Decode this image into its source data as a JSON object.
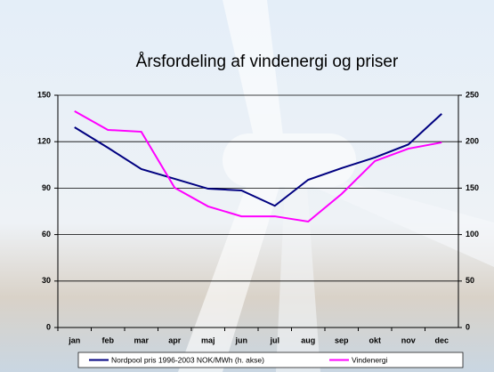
{
  "chart_data": {
    "type": "line",
    "title": "Årsfordeling af vindenergi og priser",
    "categories": [
      "jan",
      "feb",
      "mar",
      "apr",
      "maj",
      "jun",
      "jul",
      "aug",
      "sep",
      "okt",
      "nov",
      "dec"
    ],
    "series": [
      {
        "name": "Nordpool pris 1996-2003 NOK/MWh (h. akse)",
        "color": "#000080",
        "axis": "y2",
        "values": [
          215.5,
          193.5,
          170.5,
          160,
          149.4,
          147.5,
          131,
          159,
          171.5,
          183,
          197,
          230
        ]
      },
      {
        "name": "Vindenergi",
        "color": "#ff00ff",
        "values": [
          139.7,
          127.6,
          126.4,
          90.2,
          78.2,
          71.8,
          71.8,
          68.4,
          86.2,
          107.5,
          115.5,
          119.5
        ]
      }
    ],
    "ylim": [
      0,
      150
    ],
    "yticks": [
      0,
      30,
      60,
      90,
      120,
      150
    ],
    "y2lim": [
      0,
      250
    ],
    "y2ticks": [
      0,
      50,
      100,
      150,
      200,
      250
    ],
    "grid": true
  }
}
